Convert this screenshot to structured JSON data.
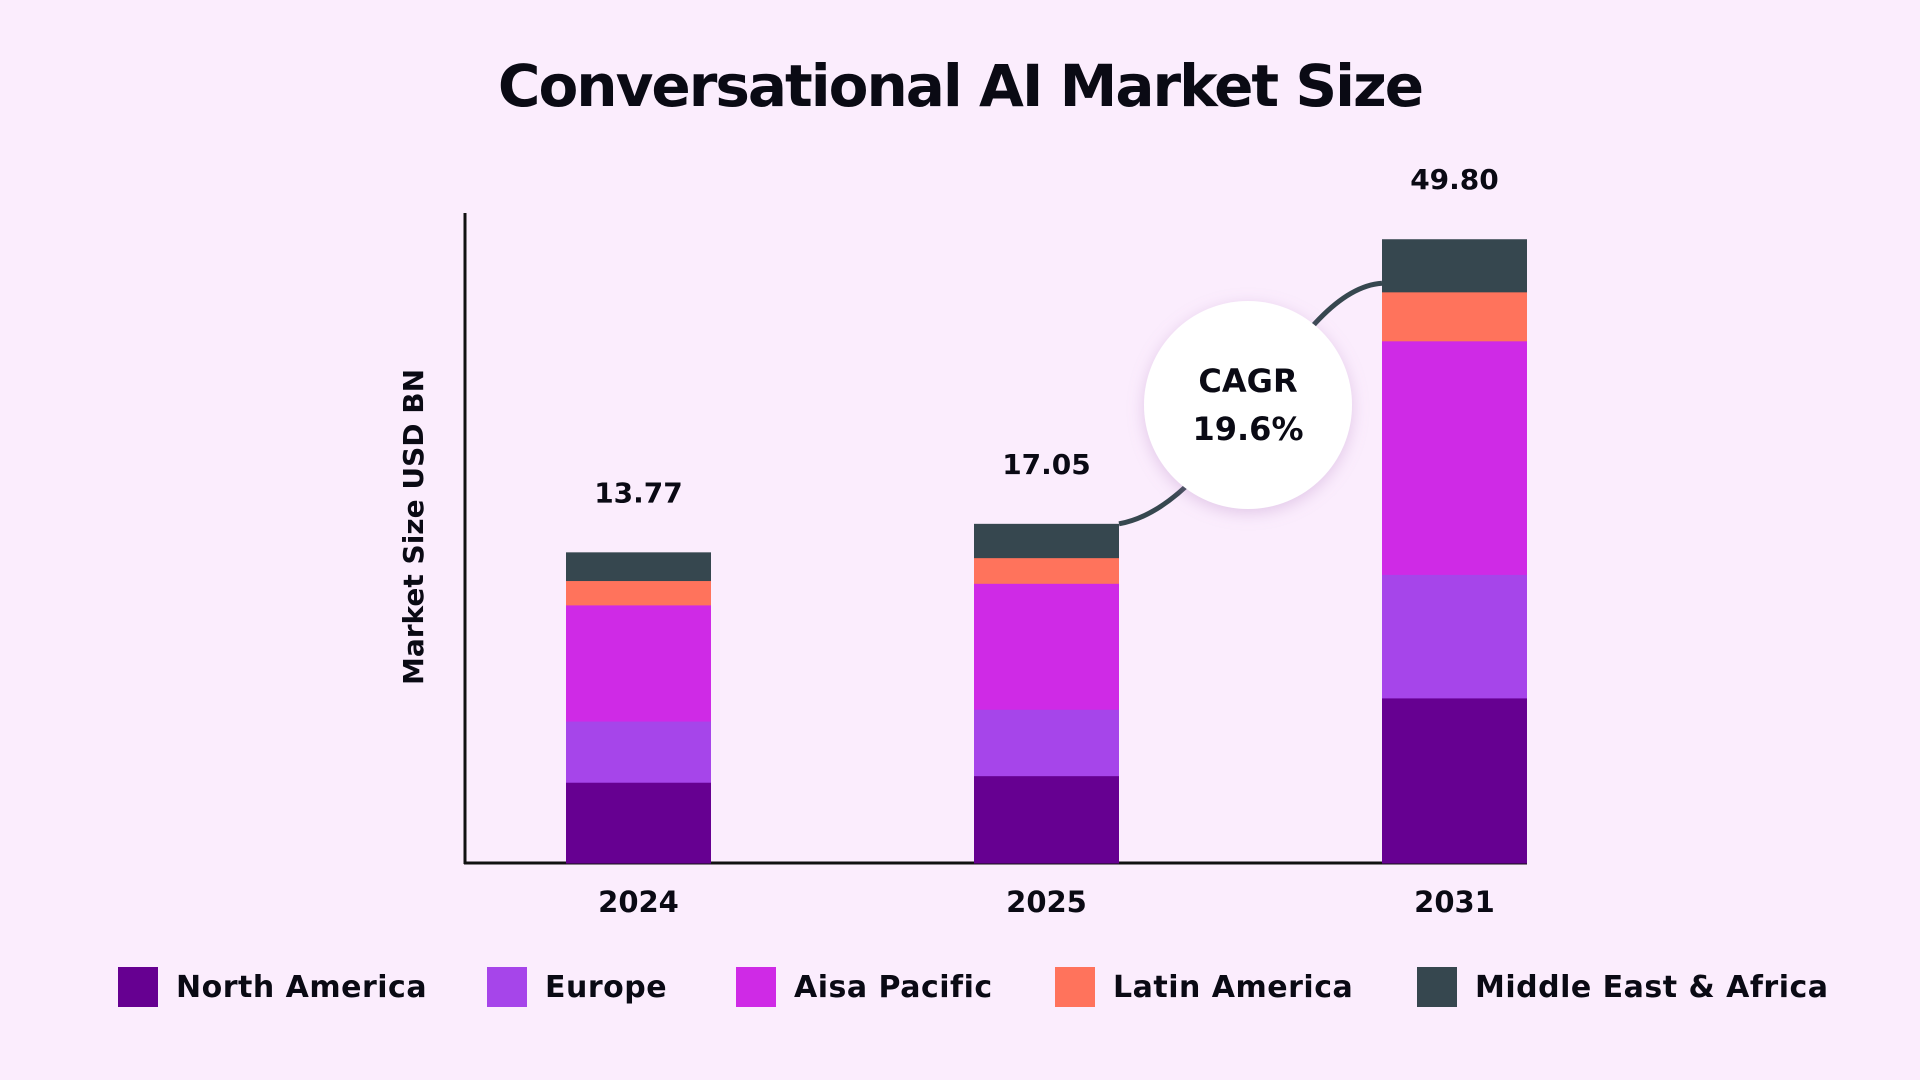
{
  "chart_data": {
    "type": "bar",
    "stacked": true,
    "title": "Conversational AI Market Size",
    "xlabel": "",
    "ylabel": "Market Size USD BN",
    "grid": false,
    "legend_position": "bottom",
    "categories": [
      "2024",
      "2025",
      "2031"
    ],
    "totals": [
      "13.77",
      "17.05",
      "49.80"
    ],
    "series": [
      {
        "name": "North America",
        "color": "#660091",
        "values": [
          3.58,
          4.39,
          13.18
        ]
      },
      {
        "name": "Europe",
        "color": "#a645ea",
        "values": [
          2.71,
          3.34,
          9.86
        ]
      },
      {
        "name": "Aisa Pacific",
        "color": "#cf2ae6",
        "values": [
          5.15,
          6.33,
          18.65
        ]
      },
      {
        "name": "Latin America",
        "color": "#ff735c",
        "values": [
          1.08,
          1.29,
          3.91
        ]
      },
      {
        "name": "Middle East & Africa",
        "color": "#36474f",
        "values": [
          1.25,
          1.7,
          4.2
        ]
      }
    ],
    "annotation": {
      "line1": "CAGR",
      "line2": "19.6%"
    }
  }
}
